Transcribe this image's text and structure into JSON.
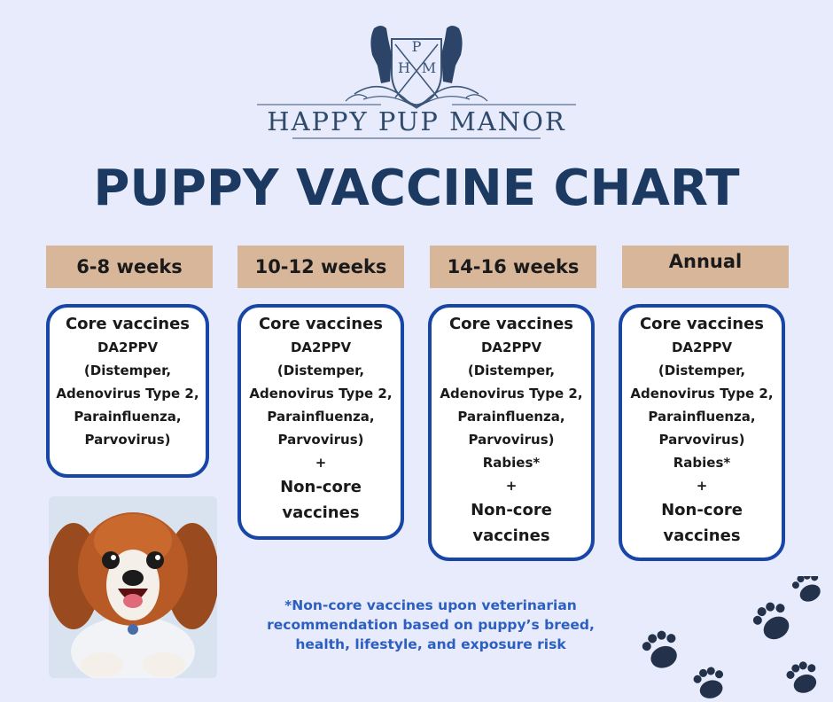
{
  "logo": {
    "monogram": [
      "P",
      "H",
      "M"
    ],
    "brand_name": "HAPPY PUP MANOR"
  },
  "title": "PUPPY VACCINE CHART",
  "columns": [
    {
      "header": "6-8 weeks",
      "core_label": "Core vaccines",
      "lines": [
        "DA2PPV",
        "(Distemper,",
        "Adenovirus Type 2,",
        "Parainfluenza,",
        "Parvovirus)"
      ],
      "noncore_lines": []
    },
    {
      "header": "10-12 weeks",
      "core_label": "Core vaccines",
      "lines": [
        "DA2PPV",
        "(Distemper,",
        "Adenovirus Type 2,",
        "Parainfluenza,",
        "Parvovirus)",
        "+"
      ],
      "noncore_lines": [
        "Non-core",
        "vaccines"
      ]
    },
    {
      "header": "14-16 weeks",
      "core_label": "Core vaccines",
      "lines": [
        "DA2PPV",
        "(Distemper,",
        "Adenovirus Type 2,",
        "Parainfluenza,",
        "Parvovirus)",
        "Rabies*",
        "+"
      ],
      "noncore_lines": [
        "Non-core",
        "vaccines"
      ]
    },
    {
      "header": "Annual",
      "core_label": "Core vaccines",
      "lines": [
        "DA2PPV",
        "(Distemper,",
        "Adenovirus Type 2,",
        "Parainfluenza,",
        "Parvovirus)",
        "Rabies*",
        "+"
      ],
      "noncore_lines": [
        "Non-core",
        "vaccines"
      ]
    }
  ],
  "footnote": "*Non-core vaccines upon veterinarian recommendation based on puppy’s breed, health, lifestyle, and exposure risk",
  "colors": {
    "background": "#e7ebfb",
    "title": "#1c3a61",
    "header_fill": "#d8b699",
    "card_border": "#1846a6",
    "footnote": "#2c5fbf"
  }
}
